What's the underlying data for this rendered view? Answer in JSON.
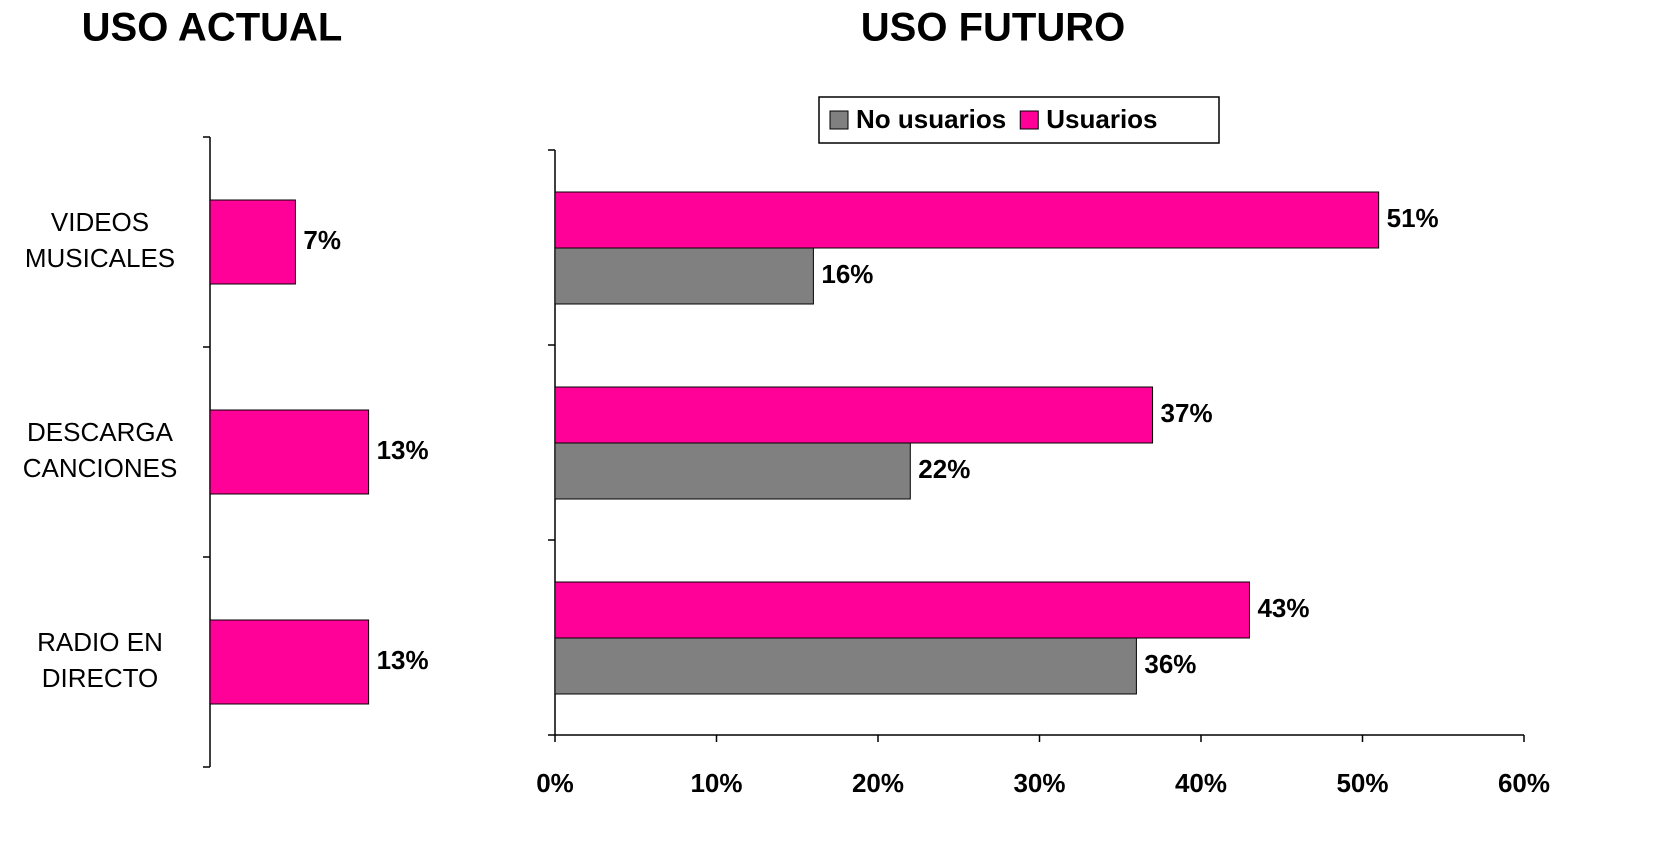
{
  "chart_data": [
    {
      "type": "bar",
      "orientation": "horizontal",
      "title": "USO ACTUAL",
      "categories": [
        "VIDEOS\nMUSICALES",
        "DESCARGA\nCANCIONES",
        "RADIO EN\nDIRECTO"
      ],
      "values": [
        7,
        13,
        13
      ],
      "value_labels": [
        "7%",
        "13%",
        "13%"
      ],
      "color": "#ff0099",
      "xlim": [
        0,
        30
      ]
    },
    {
      "type": "grouped-bar",
      "orientation": "horizontal",
      "title": "USO FUTURO",
      "categories": [
        null,
        null,
        null
      ],
      "series": [
        {
          "name": "No usuarios",
          "color": "#808080",
          "values": [
            16,
            22,
            36
          ],
          "value_labels": [
            "16%",
            "22%",
            "36%"
          ]
        },
        {
          "name": "Usuarios",
          "color": "#ff0099",
          "values": [
            51,
            37,
            43
          ],
          "value_labels": [
            "51%",
            "37%",
            "43%"
          ]
        }
      ],
      "xlim": [
        0,
        60
      ],
      "xticks": [
        {
          "value": 0,
          "label": "0%"
        },
        {
          "value": 10,
          "label": "10%"
        },
        {
          "value": 20,
          "label": "20%"
        },
        {
          "value": 30,
          "label": "30%"
        },
        {
          "value": 40,
          "label": "40%"
        },
        {
          "value": 50,
          "label": "50%"
        },
        {
          "value": 60,
          "label": "60%"
        }
      ],
      "legend": "top"
    }
  ]
}
